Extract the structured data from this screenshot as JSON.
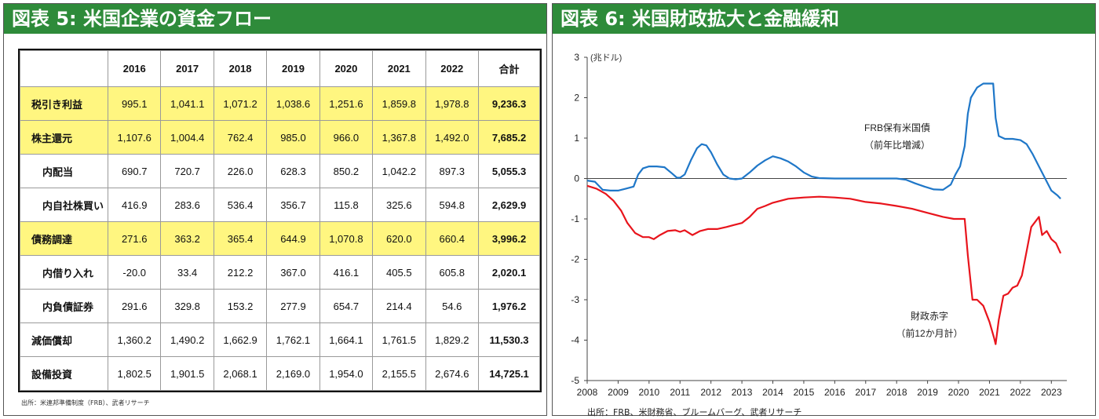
{
  "table_panel": {
    "title": "図表 5: 米国企業の資金フロー",
    "columns": [
      "",
      "2016",
      "2017",
      "2018",
      "2019",
      "2020",
      "2021",
      "2022",
      "合計"
    ],
    "rows": [
      {
        "label": "税引き利益",
        "values": [
          "995.1",
          "1,041.1",
          "1,071.2",
          "1,038.6",
          "1,251.6",
          "1,859.8",
          "1,978.8",
          "9,236.3"
        ],
        "highlight": true,
        "sub": false
      },
      {
        "label": "株主還元",
        "values": [
          "1,107.6",
          "1,004.4",
          "762.4",
          "985.0",
          "966.0",
          "1,367.8",
          "1,492.0",
          "7,685.2"
        ],
        "highlight": true,
        "sub": false
      },
      {
        "label": "内配当",
        "values": [
          "690.7",
          "720.7",
          "226.0",
          "628.3",
          "850.2",
          "1,042.2",
          "897.3",
          "5,055.3"
        ],
        "highlight": false,
        "sub": true
      },
      {
        "label": "内自社株買い",
        "values": [
          "416.9",
          "283.6",
          "536.4",
          "356.7",
          "115.8",
          "325.6",
          "594.8",
          "2,629.9"
        ],
        "highlight": false,
        "sub": true
      },
      {
        "label": "債務調達",
        "values": [
          "271.6",
          "363.2",
          "365.4",
          "644.9",
          "1,070.8",
          "620.0",
          "660.4",
          "3,996.2"
        ],
        "highlight": true,
        "sub": false
      },
      {
        "label": "内借り入れ",
        "values": [
          "-20.0",
          "33.4",
          "212.2",
          "367.0",
          "416.1",
          "405.5",
          "605.8",
          "2,020.1"
        ],
        "highlight": false,
        "sub": true
      },
      {
        "label": "内負債証券",
        "values": [
          "291.6",
          "329.8",
          "153.2",
          "277.9",
          "654.7",
          "214.4",
          "54.6",
          "1,976.2"
        ],
        "highlight": false,
        "sub": true
      },
      {
        "label": "減価償却",
        "values": [
          "1,360.2",
          "1,490.2",
          "1,662.9",
          "1,762.1",
          "1,664.1",
          "1,761.5",
          "1,829.2",
          "11,530.3"
        ],
        "highlight": false,
        "sub": false
      },
      {
        "label": "設備投資",
        "values": [
          "1,802.5",
          "1,901.5",
          "2,068.1",
          "2,169.0",
          "1,954.0",
          "2,155.5",
          "2,674.6",
          "14,725.1"
        ],
        "highlight": false,
        "sub": false
      }
    ],
    "source": "出所：米連邦準備制度（FRB）、武者リサーチ"
  },
  "chart_panel": {
    "title": "図表 6: 米国財政拡大と金融緩和",
    "source": "出所：FRB、米財務省、ブルームバーグ、武者リサーチ"
  },
  "colors": {
    "header_green": "#2e8b3a",
    "highlight_yellow": "#fff680",
    "frb_blue": "#1f77c8",
    "deficit_red": "#e8141c"
  },
  "chart_data": {
    "type": "line",
    "unit_label": "(兆ドル)",
    "ylim": [
      -5,
      3
    ],
    "yticks": [
      3,
      2,
      1,
      0,
      -1,
      -2,
      -3,
      -4,
      -5
    ],
    "xlim": [
      2008,
      2023.5
    ],
    "xticks": [
      2008,
      2009,
      2010,
      2011,
      2012,
      2013,
      2014,
      2015,
      2016,
      2017,
      2018,
      2019,
      2020,
      2021,
      2022,
      2023
    ],
    "grid": false,
    "series": [
      {
        "name": "FRB保有米国債",
        "name_line2": "（前年比増減）",
        "color": "#1f77c8",
        "points": [
          [
            2008.0,
            -0.05
          ],
          [
            2008.25,
            -0.08
          ],
          [
            2008.5,
            -0.28
          ],
          [
            2008.75,
            -0.3
          ],
          [
            2009.0,
            -0.3
          ],
          [
            2009.25,
            -0.25
          ],
          [
            2009.5,
            -0.2
          ],
          [
            2009.65,
            0.1
          ],
          [
            2009.8,
            0.25
          ],
          [
            2010.0,
            0.3
          ],
          [
            2010.25,
            0.3
          ],
          [
            2010.5,
            0.28
          ],
          [
            2010.75,
            0.12
          ],
          [
            2010.9,
            0.02
          ],
          [
            2011.0,
            0.02
          ],
          [
            2011.15,
            0.1
          ],
          [
            2011.35,
            0.45
          ],
          [
            2011.55,
            0.75
          ],
          [
            2011.7,
            0.85
          ],
          [
            2011.85,
            0.82
          ],
          [
            2012.0,
            0.65
          ],
          [
            2012.2,
            0.35
          ],
          [
            2012.4,
            0.1
          ],
          [
            2012.6,
            0.0
          ],
          [
            2012.8,
            -0.02
          ],
          [
            2013.0,
            0.0
          ],
          [
            2013.25,
            0.15
          ],
          [
            2013.5,
            0.32
          ],
          [
            2013.75,
            0.45
          ],
          [
            2014.0,
            0.55
          ],
          [
            2014.25,
            0.5
          ],
          [
            2014.5,
            0.42
          ],
          [
            2014.75,
            0.3
          ],
          [
            2015.0,
            0.15
          ],
          [
            2015.25,
            0.05
          ],
          [
            2015.5,
            0.01
          ],
          [
            2016.0,
            0.0
          ],
          [
            2017.0,
            0.0
          ],
          [
            2018.0,
            0.0
          ],
          [
            2018.3,
            -0.03
          ],
          [
            2018.6,
            -0.12
          ],
          [
            2018.9,
            -0.2
          ],
          [
            2019.2,
            -0.27
          ],
          [
            2019.5,
            -0.28
          ],
          [
            2019.75,
            -0.15
          ],
          [
            2019.9,
            0.1
          ],
          [
            2020.05,
            0.3
          ],
          [
            2020.2,
            0.8
          ],
          [
            2020.3,
            1.6
          ],
          [
            2020.4,
            2.0
          ],
          [
            2020.6,
            2.25
          ],
          [
            2020.8,
            2.35
          ],
          [
            2021.0,
            2.35
          ],
          [
            2021.12,
            2.35
          ],
          [
            2021.2,
            1.5
          ],
          [
            2021.3,
            1.05
          ],
          [
            2021.5,
            0.98
          ],
          [
            2021.75,
            0.98
          ],
          [
            2022.0,
            0.95
          ],
          [
            2022.2,
            0.85
          ],
          [
            2022.4,
            0.6
          ],
          [
            2022.6,
            0.3
          ],
          [
            2022.8,
            0.0
          ],
          [
            2023.0,
            -0.3
          ],
          [
            2023.2,
            -0.42
          ],
          [
            2023.3,
            -0.5
          ]
        ]
      },
      {
        "name": "財政赤字",
        "name_line2": "（前12か月計）",
        "color": "#e8141c",
        "points": [
          [
            2008.0,
            -0.18
          ],
          [
            2008.3,
            -0.25
          ],
          [
            2008.6,
            -0.38
          ],
          [
            2008.85,
            -0.55
          ],
          [
            2009.1,
            -0.8
          ],
          [
            2009.3,
            -1.1
          ],
          [
            2009.55,
            -1.35
          ],
          [
            2009.8,
            -1.45
          ],
          [
            2010.0,
            -1.45
          ],
          [
            2010.15,
            -1.5
          ],
          [
            2010.35,
            -1.4
          ],
          [
            2010.6,
            -1.3
          ],
          [
            2010.85,
            -1.28
          ],
          [
            2011.0,
            -1.32
          ],
          [
            2011.15,
            -1.28
          ],
          [
            2011.4,
            -1.4
          ],
          [
            2011.65,
            -1.3
          ],
          [
            2011.9,
            -1.25
          ],
          [
            2012.2,
            -1.25
          ],
          [
            2012.5,
            -1.2
          ],
          [
            2012.75,
            -1.15
          ],
          [
            2013.0,
            -1.1
          ],
          [
            2013.25,
            -0.95
          ],
          [
            2013.5,
            -0.75
          ],
          [
            2013.75,
            -0.68
          ],
          [
            2014.0,
            -0.6
          ],
          [
            2014.5,
            -0.5
          ],
          [
            2015.0,
            -0.47
          ],
          [
            2015.5,
            -0.45
          ],
          [
            2016.0,
            -0.47
          ],
          [
            2016.5,
            -0.5
          ],
          [
            2017.0,
            -0.58
          ],
          [
            2017.5,
            -0.62
          ],
          [
            2018.0,
            -0.68
          ],
          [
            2018.5,
            -0.75
          ],
          [
            2019.0,
            -0.85
          ],
          [
            2019.5,
            -0.95
          ],
          [
            2019.85,
            -1.0
          ],
          [
            2020.2,
            -1.0
          ],
          [
            2020.3,
            -1.9
          ],
          [
            2020.45,
            -3.0
          ],
          [
            2020.6,
            -3.0
          ],
          [
            2020.8,
            -3.15
          ],
          [
            2021.0,
            -3.55
          ],
          [
            2021.15,
            -3.95
          ],
          [
            2021.2,
            -4.1
          ],
          [
            2021.3,
            -3.5
          ],
          [
            2021.45,
            -2.9
          ],
          [
            2021.6,
            -2.85
          ],
          [
            2021.75,
            -2.7
          ],
          [
            2021.9,
            -2.65
          ],
          [
            2022.05,
            -2.4
          ],
          [
            2022.2,
            -1.8
          ],
          [
            2022.35,
            -1.2
          ],
          [
            2022.5,
            -1.05
          ],
          [
            2022.6,
            -0.95
          ],
          [
            2022.7,
            -1.4
          ],
          [
            2022.85,
            -1.3
          ],
          [
            2023.0,
            -1.5
          ],
          [
            2023.15,
            -1.6
          ],
          [
            2023.3,
            -1.85
          ]
        ]
      }
    ]
  }
}
